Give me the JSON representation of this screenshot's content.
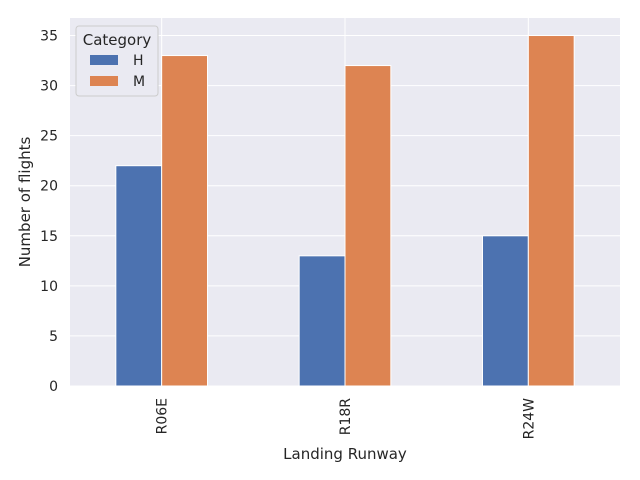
{
  "chart_data": {
    "type": "bar",
    "xlabel": "Landing Runway",
    "ylabel": "Number of flights",
    "categories": [
      "R06E",
      "R18R",
      "R24W"
    ],
    "series": [
      {
        "name": "H",
        "values": [
          22,
          13,
          15
        ],
        "color": "#4c72b0"
      },
      {
        "name": "M",
        "values": [
          33,
          32,
          35
        ],
        "color": "#dd8452"
      }
    ],
    "ylim": [
      0,
      36.75
    ],
    "yticks": [
      0,
      5,
      10,
      15,
      20,
      25,
      30,
      35
    ],
    "grid": true,
    "legend": {
      "title": "Category",
      "placement": "top-left"
    },
    "colors": {
      "plot_background": "#eaeaf2",
      "grid": "#ffffff"
    }
  }
}
